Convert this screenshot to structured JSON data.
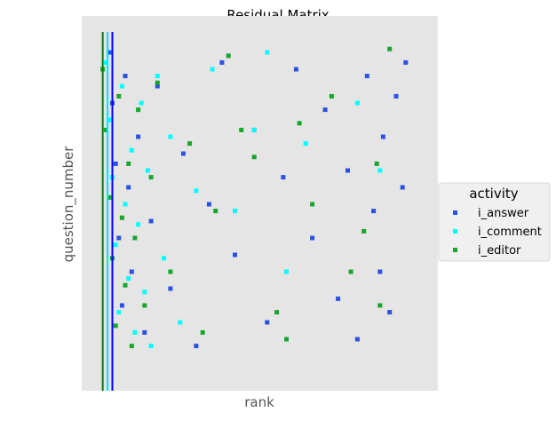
{
  "chart_data": {
    "type": "scatter",
    "title": "Residual Matrix",
    "xlabel": "rank",
    "ylabel": "question_number",
    "background": "#e5e5e5",
    "grid": false,
    "xticks": false,
    "yticks": false,
    "legend": {
      "title": "activity",
      "placement": "right",
      "entries": [
        "i_answer",
        "i_comment",
        "i_editor"
      ]
    },
    "xlim": [
      0,
      100
    ],
    "ylim": [
      0,
      100
    ],
    "series": [
      {
        "name": "i_answer",
        "color": "#2a52e3",
        "marker": "square",
        "density": "heavy near x=0-20, sparse to x=95",
        "x": [
          3,
          4,
          5,
          6,
          7,
          8,
          9,
          10,
          12,
          14,
          16,
          18,
          22,
          26,
          30,
          34,
          38,
          42,
          48,
          52,
          57,
          61,
          66,
          70,
          74,
          77,
          80,
          83,
          85,
          87,
          88,
          90,
          92,
          94,
          95
        ],
        "y": [
          95,
          80,
          62,
          40,
          20,
          88,
          55,
          30,
          70,
          12,
          45,
          85,
          25,
          65,
          8,
          50,
          92,
          35,
          72,
          15,
          58,
          90,
          40,
          78,
          22,
          60,
          10,
          88,
          48,
          30,
          70,
          18,
          82,
          55,
          92
        ]
      },
      {
        "name": "i_comment",
        "color": "#00ffff",
        "marker": "square",
        "density": "very heavy near x=2-18, few beyond x=50",
        "x": [
          2,
          3,
          4,
          5,
          6,
          7,
          8,
          9,
          10,
          11,
          12,
          13,
          14,
          15,
          16,
          18,
          20,
          22,
          25,
          30,
          35,
          42,
          48,
          52,
          58,
          64,
          80,
          87
        ],
        "y": [
          92,
          75,
          58,
          38,
          18,
          85,
          50,
          28,
          66,
          12,
          44,
          80,
          24,
          60,
          8,
          88,
          34,
          70,
          15,
          54,
          90,
          48,
          72,
          95,
          30,
          68,
          80,
          60
        ]
      },
      {
        "name": "i_editor",
        "color": "#17a62b",
        "marker": "square",
        "density": "heavy near x=0-18, scattered to x=90",
        "x": [
          1,
          2,
          3,
          4,
          5,
          6,
          7,
          8,
          9,
          10,
          11,
          12,
          14,
          16,
          18,
          22,
          28,
          32,
          36,
          40,
          44,
          48,
          55,
          58,
          62,
          66,
          72,
          78,
          82,
          86,
          87,
          90
        ],
        "y": [
          90,
          72,
          52,
          34,
          14,
          82,
          46,
          26,
          62,
          8,
          40,
          78,
          20,
          58,
          86,
          30,
          68,
          12,
          48,
          94,
          72,
          64,
          18,
          10,
          74,
          50,
          82,
          30,
          42,
          62,
          20,
          96
        ]
      }
    ],
    "vertical_lines": [
      {
        "color": "#008000",
        "x": 1
      },
      {
        "color": "#00e5ff",
        "x": 2.5
      },
      {
        "color": "#0000ff",
        "x": 4
      }
    ]
  }
}
